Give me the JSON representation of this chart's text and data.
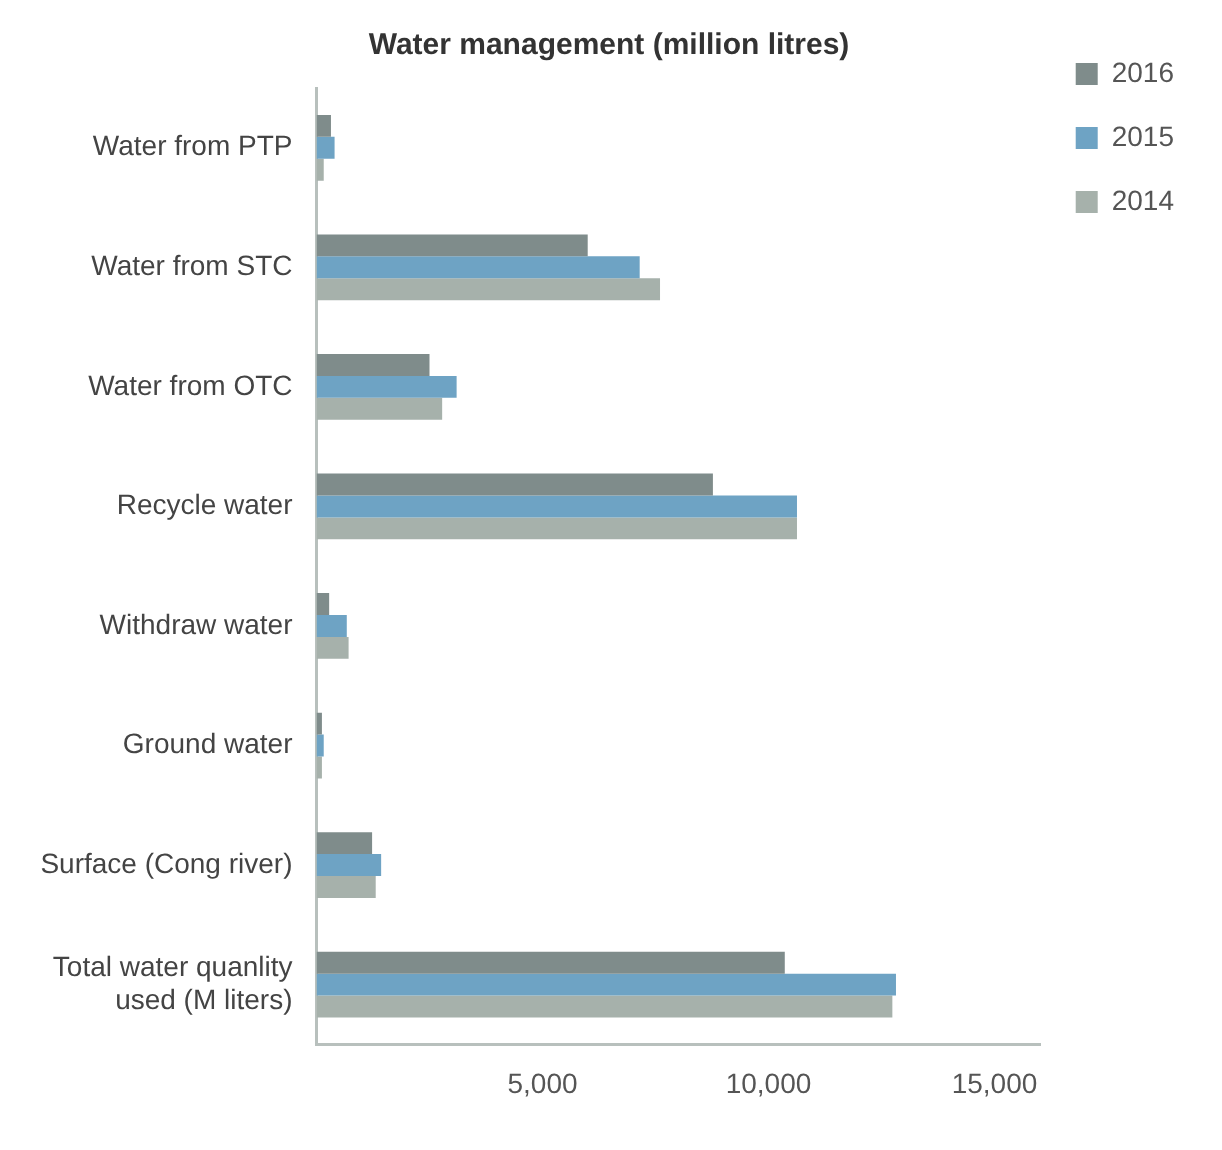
{
  "chart_data": {
    "type": "bar",
    "orientation": "horizontal",
    "title": "Water management (million litres)",
    "categories": [
      "Water from PTP",
      "Water from STC",
      "Water from OTC",
      "Recycle water",
      "Withdraw water",
      "Ground water",
      "Surface (Cong river)",
      "Total water quanlity used (M liters)"
    ],
    "series": [
      {
        "name": "2016",
        "color": "#7f8c8b",
        "values": [
          320,
          6000,
          2500,
          8770,
          280,
          120,
          1230,
          10360
        ]
      },
      {
        "name": "2015",
        "color": "#6ea3c4",
        "values": [
          400,
          7150,
          3100,
          10630,
          670,
          160,
          1430,
          12820
        ]
      },
      {
        "name": "2014",
        "color": "#a6b1ab",
        "values": [
          160,
          7600,
          2780,
          10630,
          710,
          120,
          1310,
          12740
        ]
      }
    ],
    "xlim": [
      0,
      16000
    ],
    "xticks": [
      {
        "value": 5000,
        "label": "5,000"
      },
      {
        "value": 10000,
        "label": "10,000"
      },
      {
        "value": 15000,
        "label": "15,000"
      }
    ],
    "grid": false,
    "legend": "top right"
  }
}
